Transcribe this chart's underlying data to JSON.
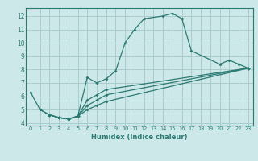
{
  "xlabel": "Humidex (Indice chaleur)",
  "bg_color": "#cde8e8",
  "grid_color": "#aacccc",
  "line_color": "#2a7a72",
  "xlim": [
    -0.5,
    23.5
  ],
  "ylim": [
    3.8,
    12.6
  ],
  "xticks": [
    0,
    1,
    2,
    3,
    4,
    5,
    6,
    7,
    8,
    9,
    10,
    11,
    12,
    13,
    14,
    15,
    16,
    17,
    18,
    19,
    20,
    21,
    22,
    23
  ],
  "yticks": [
    4,
    5,
    6,
    7,
    8,
    9,
    10,
    11,
    12
  ],
  "series1_x": [
    0,
    1,
    2,
    3,
    4,
    5,
    6,
    7,
    8,
    9,
    10,
    11,
    12,
    14,
    15,
    16,
    17,
    20,
    21,
    22,
    23
  ],
  "series1_y": [
    6.3,
    5.0,
    4.6,
    4.4,
    4.3,
    4.5,
    7.4,
    7.0,
    7.3,
    7.9,
    10.0,
    11.0,
    11.8,
    12.0,
    12.2,
    11.8,
    9.4,
    8.4,
    8.7,
    8.4,
    8.1
  ],
  "series2_x": [
    2,
    3,
    4,
    5,
    6,
    7,
    8,
    23
  ],
  "series2_y": [
    4.6,
    4.4,
    4.3,
    4.5,
    5.0,
    5.3,
    5.6,
    8.1
  ],
  "series3_x": [
    2,
    3,
    4,
    5,
    6,
    7,
    8,
    23
  ],
  "series3_y": [
    4.6,
    4.4,
    4.3,
    4.5,
    5.3,
    5.7,
    6.1,
    8.1
  ],
  "series4_x": [
    1,
    2,
    3,
    4,
    5,
    6,
    7,
    8,
    23
  ],
  "series4_y": [
    5.0,
    4.6,
    4.4,
    4.3,
    4.5,
    5.7,
    6.1,
    6.5,
    8.1
  ]
}
